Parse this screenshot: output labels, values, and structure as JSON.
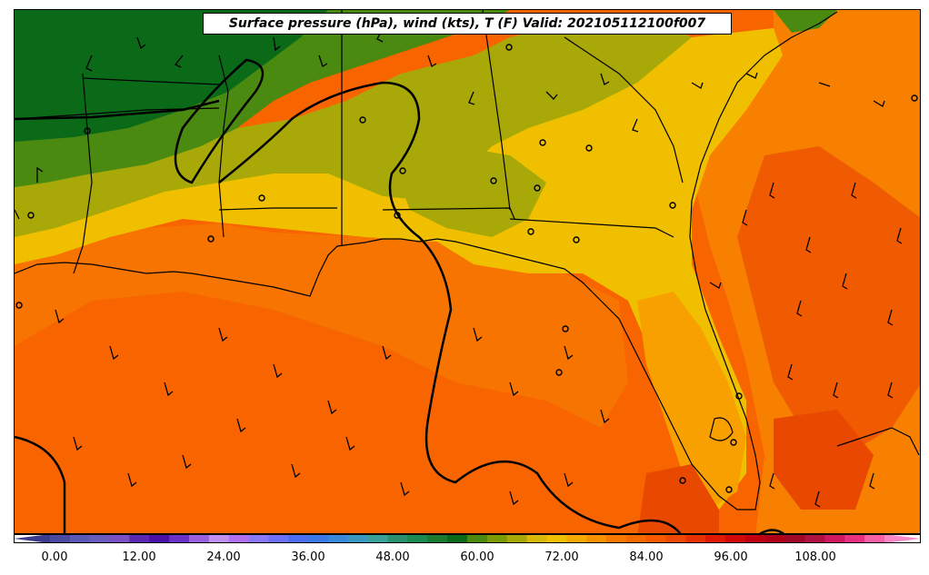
{
  "title": "Surface pressure (hPa), wind (kts), T (F) Valid: 202105112100f007",
  "colorbar": {
    "tick_labels": [
      "0.00",
      "12.00",
      "24.00",
      "36.00",
      "48.00",
      "60.00",
      "72.00",
      "84.00",
      "96.00",
      "108.00"
    ],
    "colors": [
      "#3c3a8c",
      "#4a48a0",
      "#5a58b4",
      "#6a5cbc",
      "#7a50c4",
      "#5a28b0",
      "#4a10a8",
      "#6a30c8",
      "#9a60e0",
      "#c090f0",
      "#b070f0",
      "#8a78f8",
      "#6a70f8",
      "#4a6cf0",
      "#3a78e8",
      "#3a88d8",
      "#3a98c0",
      "#3aa098",
      "#2a9070",
      "#1a8a50",
      "#1a7a30",
      "#0a6a18",
      "#4a8a10",
      "#7a9a08",
      "#a8a808",
      "#d8b808",
      "#f0c000",
      "#f8a800",
      "#f89000",
      "#f87800",
      "#f86800",
      "#f85800",
      "#f04800",
      "#e83000",
      "#e01800",
      "#d00808",
      "#c00010",
      "#b00018",
      "#a00828",
      "#b01040",
      "#d01860",
      "#e83080",
      "#f860a8",
      "#f888c8"
    ]
  },
  "chart_data": {
    "type": "map",
    "variables": [
      "surface pressure (hPa)",
      "wind (kts)",
      "temperature (F)"
    ],
    "valid": "202105112100f007",
    "colorbar_range": [
      -6,
      120
    ],
    "colorbar_tick_values": [
      0,
      12,
      24,
      36,
      48,
      60,
      72,
      84,
      96,
      108
    ]
  }
}
